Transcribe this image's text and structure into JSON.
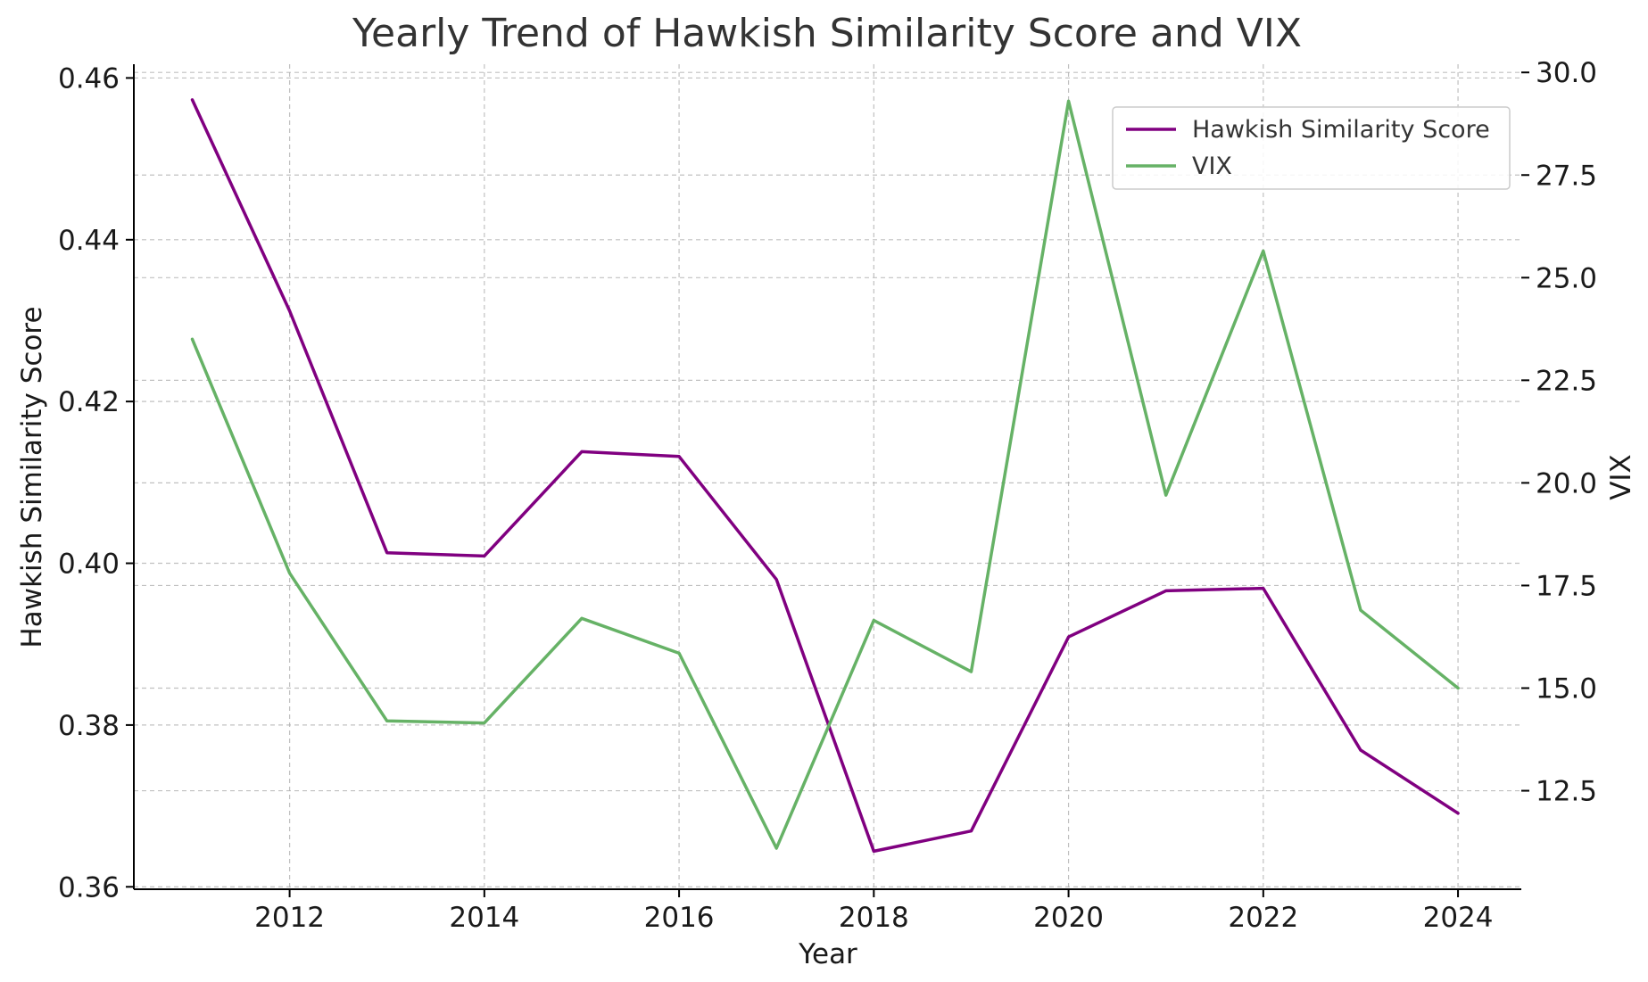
{
  "chart_data": {
    "type": "line",
    "title": "Yearly Trend of Hawkish Similarity Score and VIX",
    "xlabel": "Year",
    "ylabel": "Hawkish Similarity Score",
    "y2label": "VIX",
    "x": [
      2011,
      2012,
      2013,
      2014,
      2015,
      2016,
      2017,
      2018,
      2019,
      2020,
      2021,
      2022,
      2023,
      2024
    ],
    "xticks": [
      2012,
      2014,
      2016,
      2018,
      2020,
      2022,
      2024
    ],
    "xlim": [
      2010.4,
      2024.65
    ],
    "ylim": [
      0.3597,
      0.4617
    ],
    "yticks": [
      0.36,
      0.38,
      0.4,
      0.42,
      0.44,
      0.46
    ],
    "ytick_labels": [
      "0.36",
      "0.38",
      "0.40",
      "0.42",
      "0.44",
      "0.46"
    ],
    "y2lim": [
      10.1,
      30.2
    ],
    "y2ticks": [
      12.5,
      15.0,
      17.5,
      20.0,
      22.5,
      25.0,
      27.5,
      30.0
    ],
    "y2tick_labels": [
      "12.5",
      "15.0",
      "17.5",
      "20.0",
      "22.5",
      "25.0",
      "27.5",
      "30.0"
    ],
    "grid": true,
    "legend_position": "upper right",
    "series": [
      {
        "name": "Hawkish Similarity Score",
        "axis": "left",
        "color": "#800080",
        "values": [
          0.4573,
          0.4312,
          0.4013,
          0.4009,
          0.4138,
          0.4132,
          0.398,
          0.3644,
          0.3669,
          0.3909,
          0.3966,
          0.3969,
          0.3769,
          0.3691
        ]
      },
      {
        "name": "VIX",
        "axis": "right",
        "color": "#66b266",
        "values": [
          23.5,
          17.8,
          14.2,
          14.15,
          16.7,
          15.85,
          11.1,
          16.65,
          15.4,
          29.3,
          19.7,
          25.65,
          16.9,
          15.0
        ]
      }
    ]
  }
}
